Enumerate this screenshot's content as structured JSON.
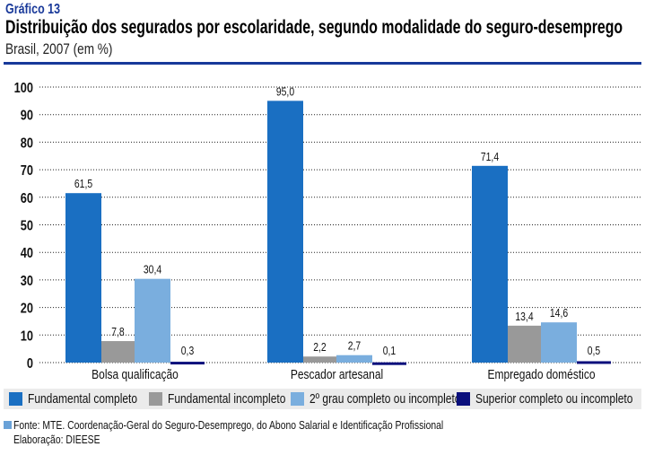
{
  "header": {
    "kicker": "Gráfico 13",
    "title": "Distribuição dos segurados por escolaridade, segundo modalidade do seguro-desemprego",
    "subtitle": "Brasil, 2007 (em %)"
  },
  "chart_data": {
    "type": "bar",
    "categories": [
      "Bolsa qualificação",
      "Pescador artesanal",
      "Empregado doméstico"
    ],
    "series": [
      {
        "name": "Fundamental completo",
        "color": "#1a6fc2",
        "values": [
          61.5,
          95.0,
          71.4
        ],
        "labels": [
          "61,5",
          "95,0",
          "71,4"
        ]
      },
      {
        "name": "Fundamental incompleto",
        "color": "#999999",
        "values": [
          7.8,
          2.2,
          13.4
        ],
        "labels": [
          "7,8",
          "2,2",
          "13,4"
        ]
      },
      {
        "name": "2º grau completo ou incompleto",
        "color": "#7aaede",
        "values": [
          30.4,
          2.7,
          14.6
        ],
        "labels": [
          "30,4",
          "2,7",
          "14,6"
        ]
      },
      {
        "name": "Superior completo ou incompleto",
        "color": "#0a0f7c",
        "values": [
          0.3,
          0.1,
          0.5
        ],
        "labels": [
          "0,3",
          "0,1",
          "0,5"
        ]
      }
    ],
    "yticks": [
      0,
      10,
      20,
      30,
      40,
      50,
      60,
      70,
      80,
      90,
      100
    ],
    "ylim": [
      0,
      100
    ],
    "grid": "dotted horizontal",
    "legend_placement": "bottom"
  },
  "footer": {
    "source": "Fonte: MTE. Coordenação-Geral do Seguro-Desemprego, do Abono Salarial e Identificação Profissional",
    "credit": "Elaboração: DIEESE"
  }
}
